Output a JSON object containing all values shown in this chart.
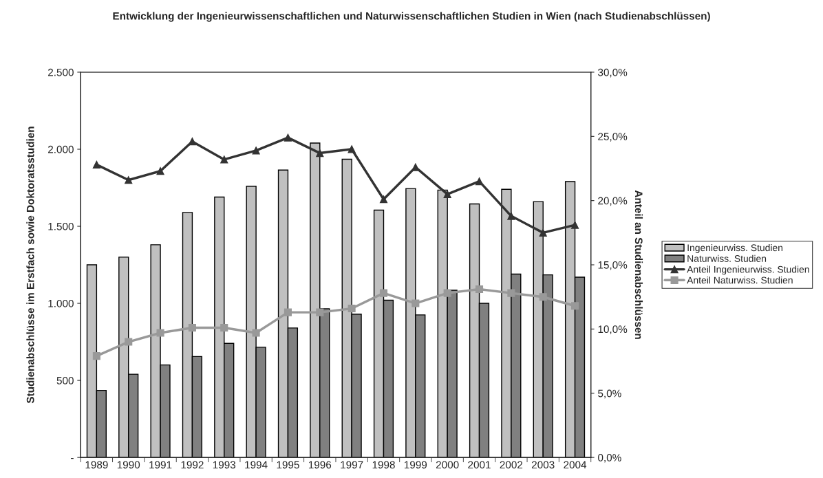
{
  "chart_data": {
    "type": "bar",
    "title": "Entwicklung der Ingenieurwissenschaftlichen und Naturwissenschaftlichen Studien in Wien (nach Studienabschlüssen)",
    "ylabel": "Studienabschlüsse im Erstfach sowie Doktoratsstudien",
    "y2label": "Anteil an Studienabschlüssen",
    "categories": [
      "1989",
      "1990",
      "1991",
      "1992",
      "1993",
      "1994",
      "1995",
      "1996",
      "1997",
      "1998",
      "1999",
      "2000",
      "2001",
      "2002",
      "2003",
      "2004"
    ],
    "series": [
      {
        "name": "Ingenieurwiss. Studien",
        "color": "#c0c0c0",
        "values": [
          1250,
          1300,
          1380,
          1590,
          1690,
          1760,
          1865,
          2040,
          1935,
          1605,
          1745,
          1735,
          1645,
          1740,
          1660,
          1790
        ]
      },
      {
        "name": "Naturwiss. Studien",
        "color": "#808080",
        "values": [
          435,
          540,
          600,
          655,
          740,
          715,
          840,
          965,
          930,
          1020,
          925,
          1085,
          1000,
          1190,
          1185,
          1170
        ]
      },
      {
        "name": "Anteil Ingenieurwiss. Studien",
        "type": "line",
        "axis": "y2",
        "marker": "triangle",
        "color": "#333333",
        "values": [
          22.8,
          21.6,
          22.3,
          24.6,
          23.2,
          23.9,
          24.9,
          23.7,
          24.0,
          20.1,
          22.6,
          20.5,
          21.5,
          18.8,
          17.5,
          18.1
        ]
      },
      {
        "name": "Anteil Naturwiss. Studien",
        "type": "line",
        "axis": "y2",
        "marker": "square",
        "color": "#999999",
        "values": [
          7.9,
          9.0,
          9.7,
          10.1,
          10.1,
          9.7,
          11.3,
          11.3,
          11.6,
          12.8,
          12.0,
          12.8,
          13.1,
          12.8,
          12.5,
          11.8
        ]
      }
    ],
    "ylim": [
      0,
      2500
    ],
    "yticks": [
      {
        "value": 0,
        "label": "-"
      },
      {
        "value": 500,
        "label": "500"
      },
      {
        "value": 1000,
        "label": "1.000"
      },
      {
        "value": 1500,
        "label": "1.500"
      },
      {
        "value": 2000,
        "label": "2.000"
      },
      {
        "value": 2500,
        "label": "2.500"
      }
    ],
    "y2lim": [
      0,
      30
    ],
    "y2ticks": [
      {
        "value": 0,
        "label": "0,0%"
      },
      {
        "value": 5,
        "label": "5,0%"
      },
      {
        "value": 10,
        "label": "10,0%"
      },
      {
        "value": 15,
        "label": "15,0%"
      },
      {
        "value": 20,
        "label": "20,0%"
      },
      {
        "value": 25,
        "label": "25,0%"
      },
      {
        "value": 30,
        "label": "30,0%"
      }
    ],
    "grid": false,
    "legend": "right"
  }
}
